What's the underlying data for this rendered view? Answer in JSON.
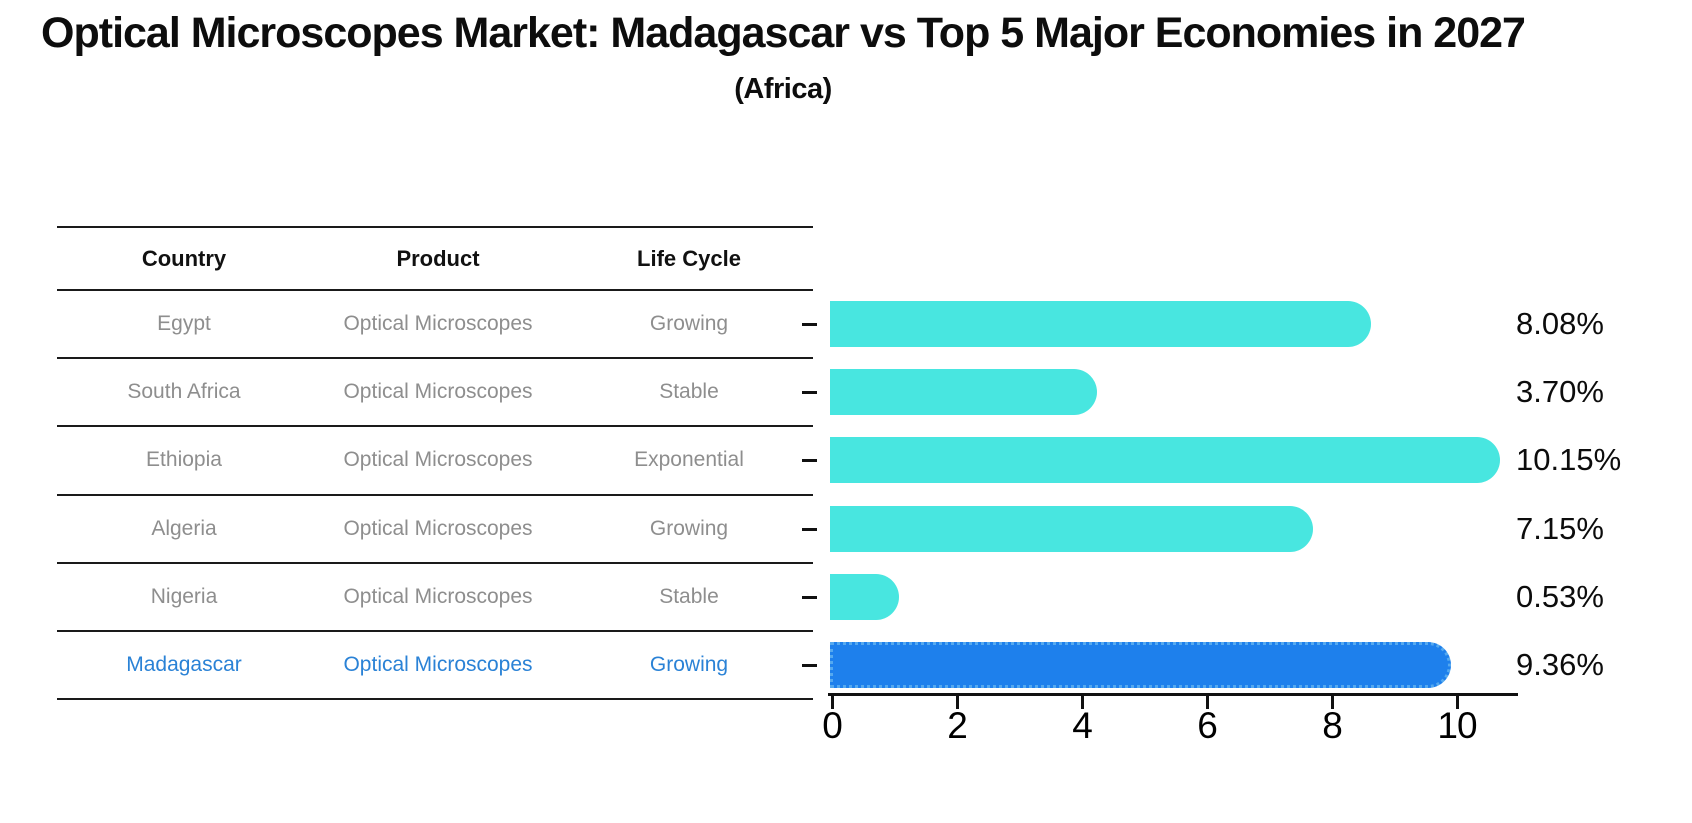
{
  "title": "Optical Microscopes Market: Madagascar vs Top 5 Major Economies in 2027",
  "subtitle": "(Africa)",
  "table": {
    "headers": [
      "Country",
      "Product",
      "Life Cycle"
    ],
    "rows": [
      {
        "country": "Egypt",
        "product": "Optical Microscopes",
        "life_cycle": "Growing",
        "highlight": false
      },
      {
        "country": "South Africa",
        "product": "Optical Microscopes",
        "life_cycle": "Stable",
        "highlight": false
      },
      {
        "country": "Ethiopia",
        "product": "Optical Microscopes",
        "life_cycle": "Exponential",
        "highlight": false
      },
      {
        "country": "Algeria",
        "product": "Optical Microscopes",
        "life_cycle": "Growing",
        "highlight": false
      },
      {
        "country": "Nigeria",
        "product": "Optical Microscopes",
        "life_cycle": "Stable",
        "highlight": false
      },
      {
        "country": "Madagascar",
        "product": "Optical Microscopes",
        "life_cycle": "Growing",
        "highlight": true
      }
    ]
  },
  "chart_data": {
    "type": "bar",
    "orientation": "horizontal",
    "title": "Optical Microscopes Market: Madagascar vs Top 5 Major Economies in 2027",
    "subtitle": "(Africa)",
    "categories": [
      "Egypt",
      "South Africa",
      "Ethiopia",
      "Algeria",
      "Nigeria",
      "Madagascar"
    ],
    "values": [
      8.08,
      3.7,
      10.15,
      7.15,
      0.53,
      9.36
    ],
    "value_labels": [
      "8.08%",
      "3.70%",
      "10.15%",
      "7.15%",
      "0.53%",
      "9.36%"
    ],
    "highlight_index": 5,
    "xticks": [
      0,
      2,
      4,
      6,
      8,
      10
    ],
    "xlim": [
      0,
      11
    ],
    "xlabel": "",
    "ylabel": "",
    "grid": false,
    "legend": false,
    "colors": {
      "bar_default": "#48E6E0",
      "bar_highlight": "#1E80EC",
      "highlight_border": "#55A9EF",
      "row_text": "#8E8E8E",
      "highlight_text": "#2A82D6",
      "label_text": "#0C0C0C",
      "axis": "#111111"
    }
  }
}
